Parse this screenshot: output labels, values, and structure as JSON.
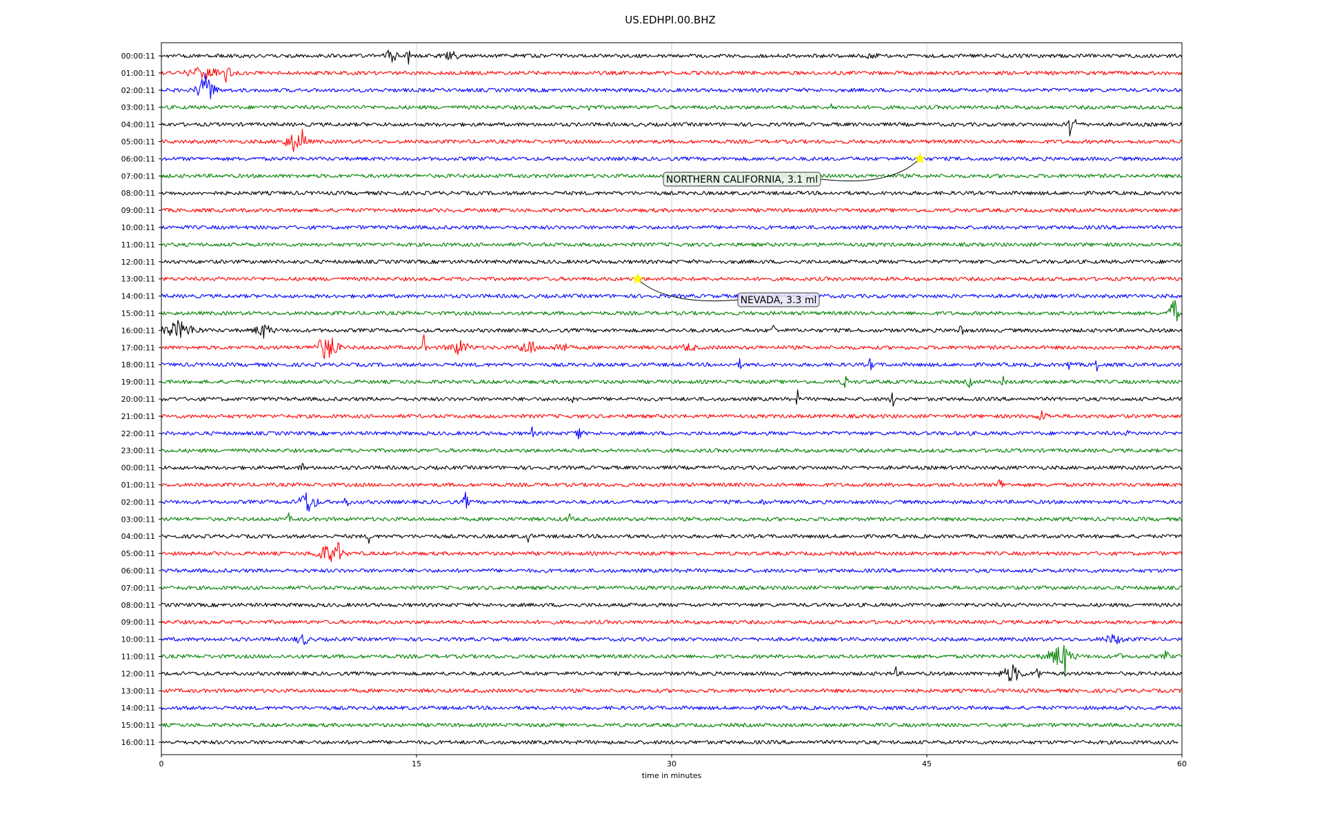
{
  "chart_data": {
    "type": "line",
    "title": "US.EDHPI.00.BHZ",
    "xlabel": "time in minutes",
    "ylabel": "",
    "xlim": [
      0,
      60
    ],
    "x_ticks": [
      0,
      15,
      30,
      45,
      60
    ],
    "x_tick_labels": [
      "0",
      "15",
      "30",
      "45",
      "60"
    ],
    "grid": "vertical at tick marks",
    "legend": "none",
    "trace_colors": [
      "#000000",
      "#ff0000",
      "#0000ff",
      "#008000"
    ],
    "row_labels": [
      "00:00:11",
      "01:00:11",
      "02:00:11",
      "03:00:11",
      "04:00:11",
      "05:00:11",
      "06:00:11",
      "07:00:11",
      "08:00:11",
      "09:00:11",
      "10:00:11",
      "11:00:11",
      "12:00:11",
      "13:00:11",
      "14:00:11",
      "15:00:11",
      "16:00:11",
      "17:00:11",
      "18:00:11",
      "19:00:11",
      "20:00:11",
      "21:00:11",
      "22:00:11",
      "23:00:11",
      "00:00:11",
      "01:00:11",
      "02:00:11",
      "03:00:11",
      "04:00:11",
      "05:00:11",
      "06:00:11",
      "07:00:11",
      "08:00:11",
      "09:00:11",
      "10:00:11",
      "11:00:11",
      "12:00:11",
      "13:00:11",
      "14:00:11",
      "15:00:11",
      "16:00:11"
    ],
    "last_row_end_minute": 59.8,
    "bursts": [
      {
        "row": 0,
        "minute": 13.5,
        "amp": 0.5,
        "dur": 0.6
      },
      {
        "row": 0,
        "minute": 14.5,
        "amp": 0.6,
        "dur": 0.3
      },
      {
        "row": 0,
        "minute": 17.0,
        "amp": 0.35,
        "dur": 0.8
      },
      {
        "row": 0,
        "minute": 41.8,
        "amp": 0.25,
        "dur": 0.5
      },
      {
        "row": 1,
        "minute": 2.5,
        "amp": 0.3,
        "dur": 2.0
      },
      {
        "row": 1,
        "minute": 3.8,
        "amp": 0.5,
        "dur": 0.5
      },
      {
        "row": 2,
        "minute": 2.6,
        "amp": 0.9,
        "dur": 1.0
      },
      {
        "row": 2,
        "minute": 2.95,
        "amp": 2.3,
        "dur": 0.15
      },
      {
        "row": 3,
        "minute": 25.1,
        "amp": 0.4,
        "dur": 0.2
      },
      {
        "row": 3,
        "minute": 39.5,
        "amp": 0.25,
        "dur": 0.3
      },
      {
        "row": 4,
        "minute": 53.4,
        "amp": 1.4,
        "dur": 0.15
      },
      {
        "row": 4,
        "minute": 53.7,
        "amp": 0.4,
        "dur": 0.4
      },
      {
        "row": 5,
        "minute": 7.8,
        "amp": 0.5,
        "dur": 1.2
      },
      {
        "row": 5,
        "minute": 8.35,
        "amp": 1.3,
        "dur": 0.25
      },
      {
        "row": 15,
        "minute": 59.5,
        "amp": 1.1,
        "dur": 0.5
      },
      {
        "row": 16,
        "minute": 1.0,
        "amp": 0.5,
        "dur": 2.0
      },
      {
        "row": 16,
        "minute": 6.0,
        "amp": 0.4,
        "dur": 1.0
      },
      {
        "row": 16,
        "minute": 36.0,
        "amp": 0.5,
        "dur": 0.2
      },
      {
        "row": 16,
        "minute": 47.0,
        "amp": 0.35,
        "dur": 0.3
      },
      {
        "row": 17,
        "minute": 9.7,
        "amp": 0.7,
        "dur": 1.3
      },
      {
        "row": 17,
        "minute": 10.0,
        "amp": 1.9,
        "dur": 0.2
      },
      {
        "row": 17,
        "minute": 15.4,
        "amp": 1.0,
        "dur": 0.2
      },
      {
        "row": 17,
        "minute": 17.5,
        "amp": 0.4,
        "dur": 1.2
      },
      {
        "row": 17,
        "minute": 21.6,
        "amp": 0.45,
        "dur": 1.0
      },
      {
        "row": 17,
        "minute": 23.5,
        "amp": 0.3,
        "dur": 0.8
      },
      {
        "row": 17,
        "minute": 31.0,
        "amp": 0.2,
        "dur": 0.8
      },
      {
        "row": 18,
        "minute": 34.0,
        "amp": 0.3,
        "dur": 0.2
      },
      {
        "row": 18,
        "minute": 41.7,
        "amp": 0.35,
        "dur": 0.3
      },
      {
        "row": 18,
        "minute": 53.4,
        "amp": 0.6,
        "dur": 0.2
      },
      {
        "row": 18,
        "minute": 55.0,
        "amp": 0.8,
        "dur": 0.15
      },
      {
        "row": 19,
        "minute": 40.2,
        "amp": 0.4,
        "dur": 0.3
      },
      {
        "row": 19,
        "minute": 47.5,
        "amp": 0.3,
        "dur": 0.3
      },
      {
        "row": 19,
        "minute": 49.5,
        "amp": 0.35,
        "dur": 0.2
      },
      {
        "row": 20,
        "minute": 24.2,
        "amp": 0.3,
        "dur": 0.15
      },
      {
        "row": 20,
        "minute": 37.4,
        "amp": 0.5,
        "dur": 0.15
      },
      {
        "row": 20,
        "minute": 43.0,
        "amp": 0.4,
        "dur": 0.3
      },
      {
        "row": 21,
        "minute": 51.8,
        "amp": 0.3,
        "dur": 0.6
      },
      {
        "row": 22,
        "minute": 21.8,
        "amp": 0.35,
        "dur": 0.15
      },
      {
        "row": 22,
        "minute": 24.5,
        "amp": 0.45,
        "dur": 0.4
      },
      {
        "row": 22,
        "minute": 56.8,
        "amp": 0.3,
        "dur": 0.15
      },
      {
        "row": 24,
        "minute": 8.3,
        "amp": 0.25,
        "dur": 0.3
      },
      {
        "row": 25,
        "minute": 49.3,
        "amp": 0.4,
        "dur": 0.4
      },
      {
        "row": 26,
        "minute": 8.6,
        "amp": 0.7,
        "dur": 1.0
      },
      {
        "row": 26,
        "minute": 10.9,
        "amp": 0.3,
        "dur": 0.3
      },
      {
        "row": 26,
        "minute": 17.9,
        "amp": 0.55,
        "dur": 0.3
      },
      {
        "row": 26,
        "minute": 35.3,
        "amp": 0.35,
        "dur": 0.2
      },
      {
        "row": 27,
        "minute": 7.5,
        "amp": 0.3,
        "dur": 0.2
      },
      {
        "row": 27,
        "minute": 24.0,
        "amp": 0.3,
        "dur": 0.3
      },
      {
        "row": 28,
        "minute": 12.2,
        "amp": 0.4,
        "dur": 0.15
      },
      {
        "row": 28,
        "minute": 21.6,
        "amp": 0.3,
        "dur": 0.3
      },
      {
        "row": 29,
        "minute": 9.8,
        "amp": 0.5,
        "dur": 1.5
      },
      {
        "row": 29,
        "minute": 10.4,
        "amp": 1.4,
        "dur": 0.2
      },
      {
        "row": 34,
        "minute": 8.3,
        "amp": 0.3,
        "dur": 0.8
      },
      {
        "row": 34,
        "minute": 56.0,
        "amp": 0.25,
        "dur": 1.2
      },
      {
        "row": 35,
        "minute": 52.8,
        "amp": 0.6,
        "dur": 1.5
      },
      {
        "row": 35,
        "minute": 53.1,
        "amp": 1.5,
        "dur": 0.2
      },
      {
        "row": 35,
        "minute": 56.3,
        "amp": 0.4,
        "dur": 0.2
      },
      {
        "row": 35,
        "minute": 59.1,
        "amp": 0.4,
        "dur": 0.3
      },
      {
        "row": 36,
        "minute": 43.2,
        "amp": 0.35,
        "dur": 0.2
      },
      {
        "row": 36,
        "minute": 50.0,
        "amp": 0.5,
        "dur": 1.2
      },
      {
        "row": 36,
        "minute": 51.5,
        "amp": 0.55,
        "dur": 0.3
      }
    ],
    "events": [
      {
        "label": "NORTHERN CALIFORNIA, 3.1 ml",
        "row": 6,
        "minute": 44.6,
        "marker_color": "#ffff00",
        "box_color": "#e6f2e6"
      },
      {
        "label": "NEVADA, 3.3 ml",
        "row": 13,
        "minute": 28.0,
        "marker_color": "#ffff00",
        "box_color": "#e6e6f5"
      }
    ]
  }
}
